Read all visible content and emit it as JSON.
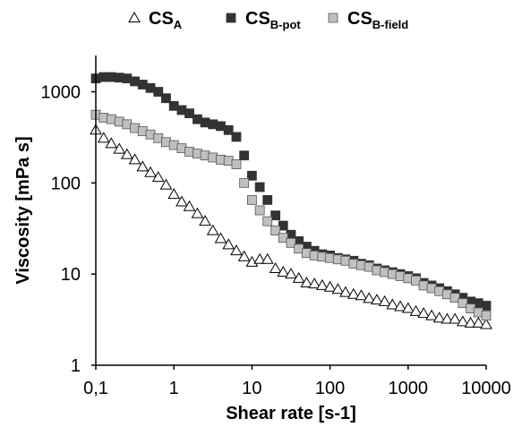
{
  "chart_data": {
    "type": "scatter",
    "title": "",
    "xlabel": "Shear rate [s-1]",
    "ylabel": "Viscosity [mPa s]",
    "x_scale": "log",
    "y_scale": "log",
    "xlim": [
      0.1,
      10000
    ],
    "ylim": [
      1,
      2500
    ],
    "x_ticks": [
      {
        "value": 0.1,
        "label": "0,1"
      },
      {
        "value": 1,
        "label": "1"
      },
      {
        "value": 10,
        "label": "10"
      },
      {
        "value": 100,
        "label": "100"
      },
      {
        "value": 1000,
        "label": "1000"
      },
      {
        "value": 10000,
        "label": "10000"
      }
    ],
    "y_ticks": [
      {
        "value": 1,
        "label": "1"
      },
      {
        "value": 10,
        "label": "10"
      },
      {
        "value": 100,
        "label": "100"
      },
      {
        "value": 1000,
        "label": "1000"
      }
    ],
    "grid": false,
    "legend_position": "top",
    "series": [
      {
        "name_main": "CS",
        "name_sub": "A",
        "marker": "triangle-open",
        "color": "#000000",
        "fill": "#ffffff",
        "x": [
          0.1,
          0.126,
          0.158,
          0.2,
          0.251,
          0.316,
          0.398,
          0.501,
          0.631,
          0.794,
          1,
          1.26,
          1.58,
          2,
          2.51,
          3.16,
          3.98,
          5.01,
          6.31,
          7.94,
          10,
          12.6,
          15.8,
          20,
          25.1,
          31.6,
          39.8,
          50.1,
          63.1,
          79.4,
          100,
          126,
          158,
          200,
          251,
          316,
          398,
          501,
          631,
          794,
          1000,
          1260,
          1580,
          2000,
          2510,
          3160,
          3980,
          5010,
          6310,
          7940,
          10000
        ],
        "y": [
          380,
          310,
          270,
          235,
          205,
          180,
          150,
          130,
          115,
          95,
          75,
          62,
          55,
          46,
          38,
          30,
          24.5,
          21,
          18,
          15.5,
          13.5,
          14.5,
          14.5,
          11.5,
          10.5,
          10,
          9,
          8,
          7.8,
          7.5,
          7.2,
          6.8,
          6.3,
          6,
          5.8,
          5.4,
          5.2,
          5,
          4.6,
          4.4,
          4.2,
          3.9,
          3.7,
          3.5,
          3.3,
          3.2,
          3.2,
          3,
          2.9,
          2.9,
          2.8
        ]
      },
      {
        "name_main": "CS",
        "name_sub": "B-pot",
        "marker": "square",
        "color": "#333333",
        "fill": "#333333",
        "x": [
          0.1,
          0.126,
          0.158,
          0.2,
          0.251,
          0.316,
          0.398,
          0.501,
          0.631,
          0.794,
          1,
          1.26,
          1.58,
          2,
          2.51,
          3.16,
          3.98,
          5.01,
          6.31,
          7.94,
          10,
          12.6,
          15.8,
          20,
          25.1,
          31.6,
          39.8,
          50.1,
          63.1,
          79.4,
          100,
          126,
          158,
          200,
          251,
          316,
          398,
          501,
          631,
          794,
          1000,
          1260,
          1580,
          2000,
          2510,
          3160,
          3980,
          5010,
          6310,
          7940,
          10000
        ],
        "y": [
          1400,
          1450,
          1450,
          1430,
          1400,
          1300,
          1200,
          1100,
          1000,
          850,
          700,
          630,
          580,
          500,
          460,
          440,
          420,
          380,
          320,
          200,
          120,
          90,
          65,
          44,
          34,
          27,
          23,
          20,
          18,
          16.5,
          16,
          15,
          14.5,
          14,
          13,
          12.5,
          11.5,
          11,
          10.5,
          10,
          9.5,
          9,
          8,
          7.5,
          7,
          6.5,
          6,
          5.5,
          5,
          4.8,
          4.5
        ]
      },
      {
        "name_main": "CS",
        "name_sub": "B-field",
        "marker": "square",
        "color": "#555555",
        "fill": "#c0c0c0",
        "x": [
          0.1,
          0.126,
          0.158,
          0.2,
          0.251,
          0.316,
          0.398,
          0.501,
          0.631,
          0.794,
          1,
          1.26,
          1.58,
          2,
          2.51,
          3.16,
          3.98,
          5.01,
          6.31,
          7.94,
          10,
          12.6,
          15.8,
          20,
          25.1,
          31.6,
          39.8,
          50.1,
          63.1,
          79.4,
          100,
          126,
          158,
          200,
          251,
          316,
          398,
          501,
          631,
          794,
          1000,
          1260,
          1580,
          2000,
          2510,
          3160,
          3980,
          5010,
          6310,
          7940,
          10000
        ],
        "y": [
          560,
          520,
          500,
          470,
          440,
          400,
          370,
          340,
          310,
          280,
          260,
          240,
          220,
          210,
          200,
          190,
          180,
          175,
          160,
          100,
          65,
          50,
          38,
          30,
          25,
          22,
          19,
          17,
          16,
          15.5,
          15,
          14.5,
          14,
          13,
          12.5,
          12,
          11,
          10.5,
          10,
          9.5,
          9,
          8.5,
          7.5,
          7,
          6.5,
          6,
          5.5,
          4.8,
          4.2,
          3.8,
          3.5
        ]
      }
    ]
  }
}
